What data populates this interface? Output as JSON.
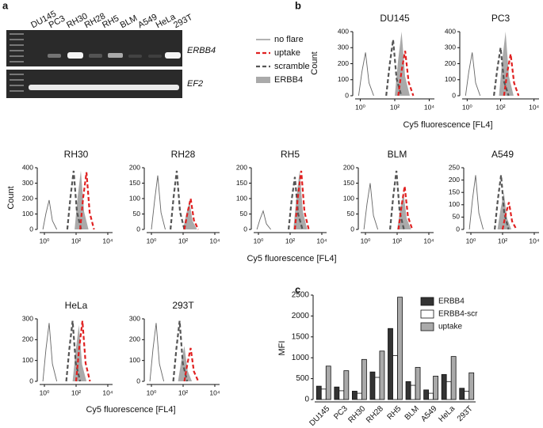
{
  "panel_labels": {
    "a": "a",
    "b": "b",
    "c": "c"
  },
  "gel": {
    "lanes": [
      "DU145",
      "PC3",
      "RH30",
      "RH28",
      "RH5",
      "BLM",
      "A549",
      "HeLa",
      "293T"
    ],
    "genes": [
      "ERBB4",
      "EF2"
    ]
  },
  "histogram_xlabel": "Cy5 fluorescence [FL4]",
  "histogram_ylabel": "Count",
  "histogram_legend": [
    {
      "name": "no flare",
      "color": "#666666",
      "dash": false,
      "fill": false
    },
    {
      "name": "uptake",
      "color": "#e02020",
      "dash": true,
      "fill": false
    },
    {
      "name": "scramble",
      "color": "#555555",
      "dash": true,
      "fill": false
    },
    {
      "name": "ERBB4",
      "color": "#aaaaaa",
      "dash": false,
      "fill": true
    }
  ],
  "chart_data": [
    {
      "type": "line",
      "title": "DU145",
      "xscale": "log",
      "xlim": [
        0.5,
        20000
      ],
      "ylim": [
        0,
        400
      ],
      "yticks": [
        0,
        100,
        200,
        300,
        400
      ],
      "xticks": [
        {
          "value": 1,
          "label": "10⁰"
        },
        {
          "value": 100,
          "label": "10²"
        },
        {
          "value": 10000,
          "label": "10⁴"
        }
      ],
      "series": [
        {
          "x": [
            0.8,
            1.25,
            2,
            3.2,
            6
          ],
          "values": [
            0,
            150,
            270,
            80,
            0
          ]
        },
        {
          "x": [
            160,
            250,
            400,
            640,
            1200
          ],
          "values": [
            0,
            155,
            280,
            85,
            0
          ]
        },
        {
          "x": [
            32,
            50,
            80,
            128,
            240
          ],
          "values": [
            0,
            190,
            350,
            105,
            0
          ]
        },
        {
          "x": [
            100,
            156,
            250,
            400,
            750
          ],
          "values": [
            0,
            220,
            400,
            120,
            0
          ]
        }
      ]
    },
    {
      "type": "line",
      "title": "PC3",
      "xscale": "log",
      "xlim": [
        0.5,
        20000
      ],
      "ylim": [
        0,
        400
      ],
      "yticks": [
        0,
        100,
        200,
        300,
        400
      ],
      "xticks": [
        {
          "value": 1,
          "label": "10⁰"
        },
        {
          "value": 100,
          "label": "10²"
        },
        {
          "value": 10000,
          "label": "10⁴"
        }
      ],
      "series": [
        {
          "x": [
            0.8,
            1.25,
            2,
            3.2,
            6
          ],
          "values": [
            0,
            150,
            270,
            80,
            0
          ]
        },
        {
          "x": [
            160,
            250,
            400,
            640,
            1200
          ],
          "values": [
            0,
            145,
            260,
            80,
            0
          ]
        },
        {
          "x": [
            40,
            63,
            100,
            160,
            300
          ],
          "values": [
            0,
            165,
            300,
            90,
            0
          ]
        },
        {
          "x": [
            80,
            125,
            200,
            320,
            600
          ],
          "values": [
            0,
            220,
            400,
            120,
            0
          ]
        }
      ]
    },
    {
      "type": "line",
      "title": "RH30",
      "xscale": "log",
      "xlim": [
        0.5,
        20000
      ],
      "ylim": [
        0,
        400
      ],
      "yticks": [
        0,
        100,
        200,
        300,
        400
      ],
      "xticks": [
        {
          "value": 1,
          "label": "10⁰"
        },
        {
          "value": 100,
          "label": "10²"
        },
        {
          "value": 10000,
          "label": "10⁴"
        }
      ],
      "series": [
        {
          "x": [
            0.8,
            1.25,
            2,
            3.2,
            6
          ],
          "values": [
            0,
            105,
            190,
            57,
            0
          ]
        },
        {
          "x": [
            180,
            280,
            450,
            720,
            1350
          ],
          "values": [
            0,
            205,
            370,
            110,
            0
          ]
        },
        {
          "x": [
            28,
            44,
            70,
            112,
            210
          ],
          "values": [
            0,
            210,
            380,
            115,
            0
          ]
        },
        {
          "x": [
            80,
            125,
            200,
            320,
            600
          ],
          "values": [
            0,
            210,
            380,
            115,
            0
          ]
        }
      ]
    },
    {
      "type": "line",
      "title": "RH28",
      "xscale": "log",
      "xlim": [
        0.5,
        20000
      ],
      "ylim": [
        0,
        200
      ],
      "yticks": [
        0,
        50,
        100,
        150,
        200
      ],
      "xticks": [
        {
          "value": 1,
          "label": "10⁰"
        },
        {
          "value": 100,
          "label": "10²"
        },
        {
          "value": 10000,
          "label": "10⁴"
        }
      ],
      "series": [
        {
          "x": [
            1,
            1.6,
            2.5,
            4,
            7.5
          ],
          "values": [
            0,
            95,
            175,
            55,
            0
          ]
        },
        {
          "x": [
            120,
            190,
            300,
            480,
            900
          ],
          "values": [
            0,
            55,
            100,
            30,
            0
          ]
        },
        {
          "x": [
            16,
            25,
            40,
            64,
            120
          ],
          "values": [
            0,
            105,
            190,
            57,
            0
          ]
        },
        {
          "x": [
            100,
            156,
            250,
            400,
            750
          ],
          "values": [
            0,
            50,
            90,
            27,
            0
          ]
        }
      ]
    },
    {
      "type": "line",
      "title": "RH5",
      "xscale": "log",
      "xlim": [
        0.5,
        20000
      ],
      "ylim": [
        0,
        200
      ],
      "yticks": [
        0,
        50,
        100,
        150,
        200
      ],
      "xticks": [
        {
          "value": 1,
          "label": "10⁰"
        },
        {
          "value": 100,
          "label": "10²"
        },
        {
          "value": 10000,
          "label": "10⁴"
        }
      ],
      "series": [
        {
          "x": [
            0.8,
            1.25,
            2,
            3.2,
            6
          ],
          "values": [
            0,
            33,
            60,
            18,
            0
          ]
        },
        {
          "x": [
            200,
            310,
            500,
            800,
            1500
          ],
          "values": [
            0,
            105,
            190,
            57,
            0
          ]
        },
        {
          "x": [
            80,
            125,
            200,
            320,
            600
          ],
          "values": [
            0,
            95,
            170,
            50,
            0
          ]
        },
        {
          "x": [
            160,
            250,
            400,
            640,
            1200
          ],
          "values": [
            0,
            105,
            190,
            57,
            0
          ]
        }
      ]
    },
    {
      "type": "line",
      "title": "BLM",
      "xscale": "log",
      "xlim": [
        0.5,
        20000
      ],
      "ylim": [
        0,
        200
      ],
      "yticks": [
        0,
        50,
        100,
        150,
        200
      ],
      "xticks": [
        {
          "value": 1,
          "label": "10⁰"
        },
        {
          "value": 100,
          "label": "10²"
        },
        {
          "value": 10000,
          "label": "10⁴"
        }
      ],
      "series": [
        {
          "x": [
            0.8,
            1.25,
            2,
            3.2,
            6
          ],
          "values": [
            0,
            83,
            150,
            45,
            0
          ]
        },
        {
          "x": [
            120,
            190,
            300,
            480,
            900
          ],
          "values": [
            0,
            77,
            140,
            42,
            0
          ]
        },
        {
          "x": [
            36,
            56,
            90,
            144,
            270
          ],
          "values": [
            0,
            105,
            190,
            57,
            0
          ]
        },
        {
          "x": [
            100,
            156,
            250,
            400,
            750
          ],
          "values": [
            0,
            66,
            120,
            36,
            0
          ]
        }
      ]
    },
    {
      "type": "line",
      "title": "A549",
      "xscale": "log",
      "xlim": [
        0.5,
        20000
      ],
      "ylim": [
        0,
        250
      ],
      "yticks": [
        0,
        50,
        100,
        150,
        200,
        250
      ],
      "xticks": [
        {
          "value": 1,
          "label": "10⁰"
        },
        {
          "value": 100,
          "label": "10²"
        },
        {
          "value": 10000,
          "label": "10⁴"
        }
      ],
      "series": [
        {
          "x": [
            0.8,
            1.25,
            2,
            3.2,
            6
          ],
          "values": [
            0,
            120,
            220,
            66,
            0
          ]
        },
        {
          "x": [
            100,
            156,
            250,
            400,
            750
          ],
          "values": [
            0,
            60,
            110,
            33,
            0
          ]
        },
        {
          "x": [
            32,
            50,
            80,
            128,
            240
          ],
          "values": [
            0,
            120,
            220,
            66,
            0
          ]
        },
        {
          "x": [
            48,
            75,
            120,
            192,
            360
          ],
          "values": [
            0,
            83,
            150,
            45,
            0
          ]
        }
      ]
    },
    {
      "type": "line",
      "title": "HeLa",
      "xscale": "log",
      "xlim": [
        0.5,
        20000
      ],
      "ylim": [
        0,
        300
      ],
      "yticks": [
        0,
        100,
        200,
        300
      ],
      "xticks": [
        {
          "value": 1,
          "label": "10⁰"
        },
        {
          "value": 100,
          "label": "10²"
        },
        {
          "value": 10000,
          "label": "10⁴"
        }
      ],
      "series": [
        {
          "x": [
            0.8,
            1.25,
            2,
            3.2,
            6
          ],
          "values": [
            0,
            155,
            280,
            84,
            0
          ]
        },
        {
          "x": [
            100,
            156,
            250,
            400,
            750
          ],
          "values": [
            0,
            160,
            290,
            87,
            0
          ]
        },
        {
          "x": [
            24,
            38,
            60,
            96,
            180
          ],
          "values": [
            0,
            160,
            290,
            87,
            0
          ]
        },
        {
          "x": [
            60,
            94,
            150,
            240,
            450
          ],
          "values": [
            0,
            150,
            270,
            81,
            0
          ]
        }
      ]
    },
    {
      "type": "line",
      "title": "293T",
      "xscale": "log",
      "xlim": [
        0.5,
        20000
      ],
      "ylim": [
        0,
        300
      ],
      "yticks": [
        0,
        100,
        200,
        300
      ],
      "xticks": [
        {
          "value": 1,
          "label": "10⁰"
        },
        {
          "value": 100,
          "label": "10²"
        },
        {
          "value": 10000,
          "label": "10⁴"
        }
      ],
      "series": [
        {
          "x": [
            0.8,
            1.25,
            2,
            3.2,
            6
          ],
          "values": [
            0,
            155,
            280,
            84,
            0
          ]
        },
        {
          "x": [
            120,
            190,
            300,
            480,
            900
          ],
          "values": [
            0,
            88,
            160,
            48,
            0
          ]
        },
        {
          "x": [
            24,
            38,
            60,
            96,
            180
          ],
          "values": [
            0,
            160,
            290,
            87,
            0
          ]
        },
        {
          "x": [
            48,
            75,
            120,
            192,
            360
          ],
          "values": [
            0,
            94,
            170,
            51,
            0
          ]
        }
      ]
    },
    {
      "type": "bar",
      "ylabel": "MFI",
      "categories": [
        "DU145",
        "PC3",
        "RH30",
        "RH28",
        "RH5",
        "BLM",
        "A549",
        "HeLa",
        "293T"
      ],
      "ylim": [
        0,
        2500
      ],
      "yticks": [
        0,
        500,
        1000,
        1500,
        2000,
        2500
      ],
      "series": [
        {
          "name": "ERBB4",
          "color": "#333333",
          "values": [
            320,
            300,
            200,
            660,
            1700,
            430,
            230,
            600,
            270
          ]
        },
        {
          "name": "ERBB4-scr",
          "color": "#ffffff",
          "values": [
            250,
            210,
            150,
            530,
            1050,
            340,
            150,
            430,
            200
          ]
        },
        {
          "name": "uptake",
          "color": "#aaaaaa",
          "values": [
            800,
            690,
            960,
            1160,
            2450,
            770,
            560,
            1030,
            640
          ]
        }
      ]
    }
  ]
}
